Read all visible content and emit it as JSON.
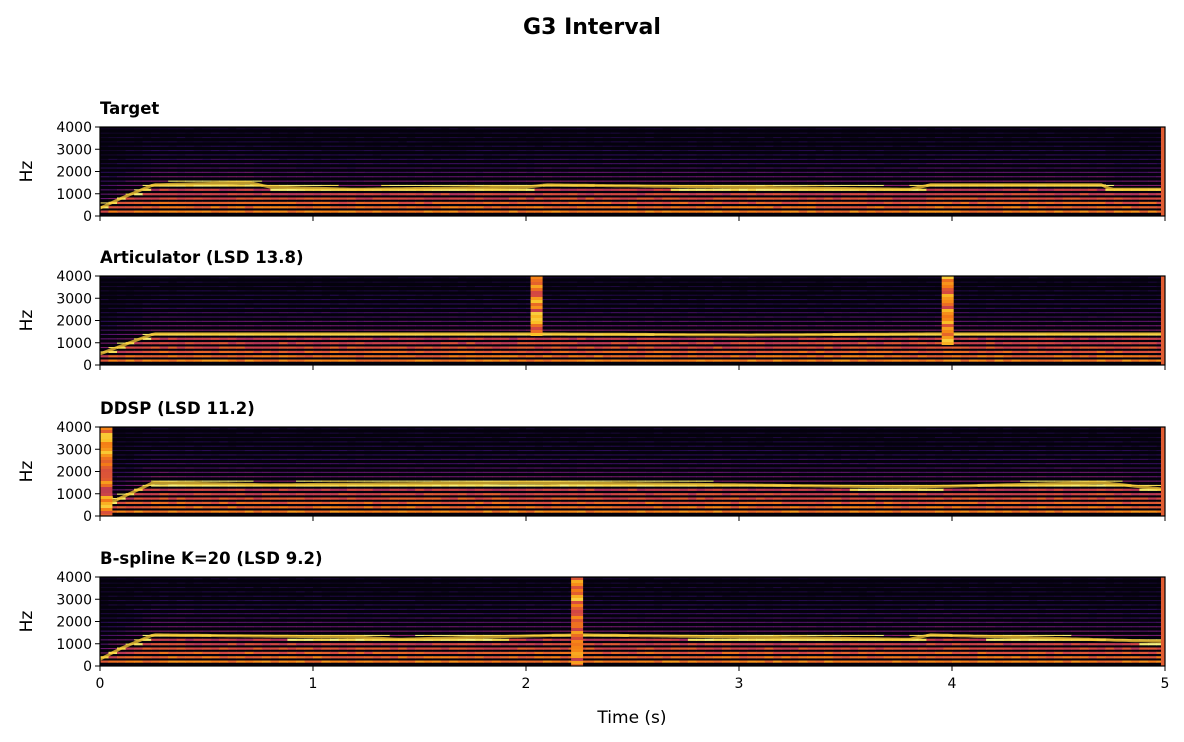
{
  "figure": {
    "suptitle": "G3 Interval"
  },
  "chart_data": {
    "type": "heatmap",
    "title": "G3 Interval",
    "xlabel": "Time (s)",
    "ylabel": "Hz",
    "xlim": [
      0,
      5
    ],
    "ylim": [
      0,
      4000
    ],
    "x_ticks": [
      "0",
      "1",
      "2",
      "3",
      "4",
      "5"
    ],
    "y_ticks": [
      "0",
      "1000",
      "2000",
      "3000",
      "4000"
    ],
    "colormap": "inferno",
    "shared_x": true,
    "panels": [
      {
        "title": "Target",
        "fundamental_hz": 196,
        "bright_band_hz": [
          [
            0.0,
            350
          ],
          [
            0.1,
            800
          ],
          [
            0.25,
            1400
          ],
          [
            0.7,
            1500
          ],
          [
            0.8,
            1300
          ],
          [
            1.2,
            1200
          ],
          [
            2.0,
            1300
          ],
          [
            2.1,
            1400
          ],
          [
            3.8,
            1200
          ],
          [
            3.9,
            1400
          ],
          [
            4.7,
            1400
          ],
          [
            4.75,
            1200
          ],
          [
            5.0,
            1200
          ]
        ],
        "events": []
      },
      {
        "title": "Articulator (LSD 13.8)",
        "fundamental_hz": 196,
        "bright_band_hz": [
          [
            0.0,
            500
          ],
          [
            0.25,
            1400
          ],
          [
            1.2,
            1400
          ],
          [
            2.0,
            1400
          ],
          [
            3.05,
            1350
          ],
          [
            3.95,
            1400
          ],
          [
            4.85,
            1400
          ],
          [
            5.0,
            1400
          ]
        ],
        "events": [
          {
            "t": 2.05,
            "f_lo": 1400,
            "f_hi": 4000
          },
          {
            "t": 3.98,
            "f_lo": 1000,
            "f_hi": 4000
          }
        ]
      },
      {
        "title": "DDSP (LSD 11.2)",
        "fundamental_hz": 196,
        "bright_band_hz": [
          [
            0.0,
            4000
          ],
          [
            0.05,
            600
          ],
          [
            0.25,
            1500
          ],
          [
            0.8,
            1400
          ],
          [
            2.0,
            1500
          ],
          [
            3.0,
            1400
          ],
          [
            3.8,
            1300
          ],
          [
            4.7,
            1500
          ],
          [
            5.0,
            1200
          ]
        ],
        "events": [
          {
            "t": 0.03,
            "f_lo": 0,
            "f_hi": 4000
          }
        ]
      },
      {
        "title": "B-spline K=20 (LSD 9.2)",
        "fundamental_hz": 196,
        "bright_band_hz": [
          [
            0.0,
            300
          ],
          [
            0.1,
            800
          ],
          [
            0.25,
            1400
          ],
          [
            1.2,
            1300
          ],
          [
            1.4,
            1200
          ],
          [
            2.0,
            1350
          ],
          [
            2.25,
            1400
          ],
          [
            3.8,
            1200
          ],
          [
            3.9,
            1400
          ],
          [
            5.0,
            1100
          ]
        ],
        "events": [
          {
            "t": 2.24,
            "f_lo": 0,
            "f_hi": 4000
          }
        ]
      }
    ]
  }
}
